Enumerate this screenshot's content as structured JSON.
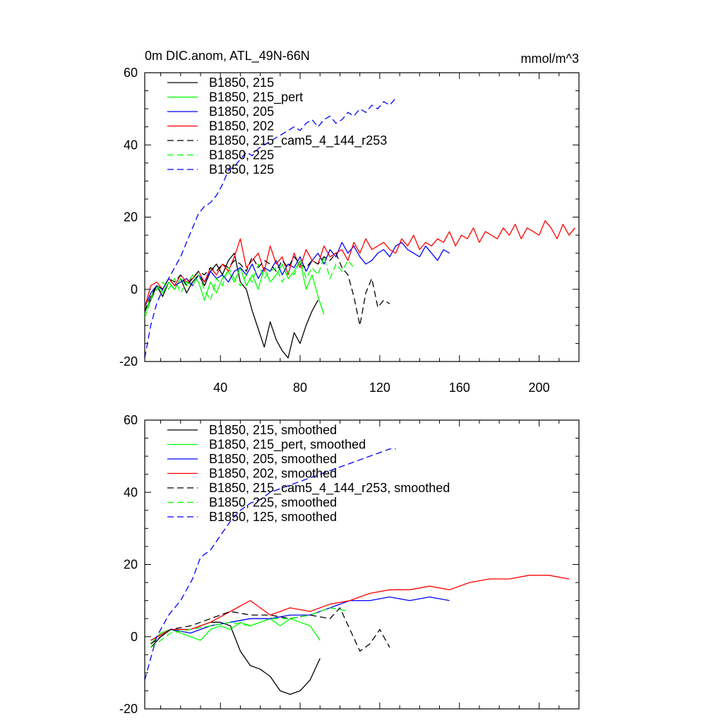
{
  "chart_data": [
    {
      "type": "line",
      "title": "0m DIC.anom, ATL_49N-66N",
      "units": "mmol/m^3",
      "xlabel": "",
      "ylabel": "",
      "xlim": [
        2,
        220
      ],
      "ylim": [
        -20,
        60
      ],
      "yticks": [
        -20,
        0,
        20,
        40,
        60
      ],
      "xticks": [
        40,
        80,
        120,
        160,
        200
      ],
      "show_xtick_labels": true,
      "legend_position": "top-left",
      "series": [
        {
          "name": "B1850, 215",
          "color": "#000000",
          "dash": "solid",
          "x": [
            2,
            5,
            8,
            11,
            14,
            17,
            20,
            23,
            26,
            29,
            32,
            35,
            38,
            41,
            44,
            47,
            50,
            53,
            56,
            59,
            62,
            65,
            68,
            71,
            74,
            77,
            80,
            83,
            86,
            89
          ],
          "y": [
            -6,
            -3,
            1,
            -2,
            2,
            0,
            3,
            -1,
            2,
            4,
            1,
            5,
            7,
            4,
            8,
            10,
            2,
            0,
            -6,
            -11,
            -16,
            -9,
            -14,
            -17,
            -19,
            -12,
            -15,
            -10,
            -6,
            -3
          ]
        },
        {
          "name": "B1850, 215_pert",
          "color": "#00ff00",
          "dash": "solid",
          "x": [
            2,
            5,
            8,
            11,
            14,
            17,
            20,
            23,
            26,
            29,
            32,
            35,
            38,
            41,
            44,
            47,
            50,
            53,
            56,
            59,
            62,
            65,
            68,
            71,
            74,
            77,
            80,
            83,
            86,
            89,
            92
          ],
          "y": [
            -7,
            -2,
            1,
            -1,
            2,
            0,
            3,
            1,
            4,
            2,
            -3,
            2,
            -1,
            3,
            5,
            2,
            6,
            1,
            4,
            0,
            6,
            2,
            4,
            7,
            3,
            5,
            8,
            0,
            4,
            -2,
            -7
          ]
        },
        {
          "name": "B1850, 205",
          "color": "#0000ff",
          "dash": "solid",
          "x": [
            2,
            5,
            8,
            11,
            14,
            17,
            20,
            23,
            26,
            29,
            32,
            35,
            38,
            41,
            44,
            47,
            50,
            53,
            56,
            59,
            62,
            65,
            68,
            71,
            74,
            77,
            80,
            83,
            86,
            89,
            92,
            95,
            98,
            101,
            104,
            107,
            110,
            113,
            116,
            119,
            122,
            125,
            128,
            131,
            134,
            137,
            140,
            143,
            146,
            149,
            152,
            155
          ],
          "y": [
            -5,
            -1,
            1,
            0,
            3,
            1,
            2,
            3,
            1,
            4,
            2,
            5,
            3,
            4,
            2,
            5,
            6,
            4,
            7,
            3,
            6,
            5,
            8,
            4,
            7,
            6,
            9,
            5,
            8,
            10,
            7,
            11,
            9,
            13,
            10,
            12,
            9,
            7,
            8,
            10,
            11,
            9,
            12,
            13,
            11,
            10,
            9,
            12,
            10,
            8,
            11,
            10
          ]
        },
        {
          "name": "B1850, 202",
          "color": "#ff0000",
          "dash": "solid",
          "x": [
            2,
            5,
            8,
            11,
            14,
            17,
            20,
            23,
            26,
            29,
            32,
            35,
            38,
            41,
            44,
            47,
            50,
            53,
            56,
            59,
            62,
            65,
            68,
            71,
            74,
            77,
            80,
            83,
            86,
            89,
            92,
            95,
            98,
            101,
            104,
            107,
            110,
            113,
            116,
            119,
            122,
            125,
            128,
            131,
            134,
            137,
            140,
            143,
            146,
            149,
            152,
            155,
            158,
            161,
            164,
            167,
            170,
            173,
            176,
            179,
            182,
            185,
            188,
            191,
            194,
            197,
            200,
            203,
            206,
            209,
            212,
            215,
            218
          ],
          "y": [
            -5,
            1,
            2,
            0,
            3,
            1,
            4,
            2,
            3,
            5,
            2,
            6,
            4,
            7,
            5,
            9,
            14,
            6,
            8,
            10,
            5,
            12,
            7,
            9,
            4,
            10,
            6,
            11,
            8,
            7,
            12,
            9,
            10,
            11,
            8,
            13,
            10,
            14,
            11,
            12,
            13,
            11,
            10,
            14,
            12,
            15,
            11,
            13,
            12,
            14,
            13,
            16,
            12,
            15,
            14,
            17,
            13,
            16,
            15,
            14,
            17,
            15,
            18,
            14,
            17,
            16,
            15,
            19,
            17,
            14,
            18,
            15,
            17
          ]
        },
        {
          "name": "B1850, 215_cam5_4_144_r253",
          "color": "#000000",
          "dash": "dashed",
          "x": [
            2,
            5,
            8,
            11,
            14,
            17,
            20,
            23,
            26,
            29,
            32,
            35,
            38,
            41,
            44,
            47,
            50,
            53,
            56,
            59,
            62,
            65,
            68,
            71,
            74,
            77,
            80,
            83,
            86,
            89,
            92,
            95,
            98,
            101,
            104,
            107,
            110,
            113,
            116,
            119,
            122,
            125
          ],
          "y": [
            -6,
            -2,
            1,
            0,
            3,
            2,
            4,
            1,
            3,
            5,
            4,
            6,
            5,
            7,
            6,
            8,
            7,
            5,
            9,
            6,
            8,
            7,
            5,
            8,
            6,
            9,
            7,
            6,
            8,
            7,
            9,
            8,
            10,
            6,
            4,
            -2,
            -10,
            -1,
            3,
            -5,
            -3,
            -4
          ]
        },
        {
          "name": "B1850, 225",
          "color": "#00ff00",
          "dash": "dashed",
          "x": [
            2,
            5,
            8,
            11,
            14,
            17,
            20,
            23,
            26,
            29,
            32,
            35,
            38,
            41,
            44,
            47,
            50,
            53,
            56,
            59,
            62,
            65,
            68,
            71,
            74,
            77,
            80,
            83,
            86,
            89,
            92,
            95,
            98,
            101,
            104,
            107
          ],
          "y": [
            -8,
            -3,
            0,
            2,
            0,
            3,
            -1,
            2,
            1,
            4,
            0,
            -3,
            3,
            1,
            6,
            3,
            1,
            4,
            2,
            7,
            3,
            5,
            6,
            2,
            5,
            4,
            8,
            3,
            6,
            4,
            9,
            3,
            7,
            5,
            8,
            6
          ]
        },
        {
          "name": "B1850, 125",
          "color": "#0000ff",
          "dash": "dashed",
          "x": [
            2,
            5,
            8,
            11,
            14,
            17,
            20,
            23,
            26,
            29,
            32,
            35,
            38,
            41,
            44,
            47,
            50,
            53,
            56,
            59,
            62,
            65,
            68,
            71,
            74,
            77,
            80,
            83,
            86,
            89,
            92,
            95,
            98,
            101,
            104,
            107,
            110,
            113,
            116,
            119,
            122,
            125,
            128
          ],
          "y": [
            -19,
            -10,
            -4,
            0,
            3,
            6,
            9,
            13,
            17,
            21,
            23,
            24,
            26,
            29,
            33,
            34,
            36,
            38,
            37,
            39,
            40,
            41,
            42,
            43,
            44,
            45,
            44,
            46,
            47,
            45,
            47,
            48,
            46,
            47,
            49,
            48,
            50,
            49,
            51,
            50,
            52,
            51,
            53
          ]
        }
      ]
    },
    {
      "type": "line",
      "title": "",
      "xlabel": "",
      "ylabel": "",
      "xlim": [
        2,
        220
      ],
      "ylim": [
        -20,
        60
      ],
      "yticks": [
        -20,
        0,
        20,
        40,
        60
      ],
      "xticks": [
        40,
        80,
        120,
        160,
        200
      ],
      "show_xtick_labels": false,
      "legend_position": "top-left",
      "series": [
        {
          "name": "B1850, 215, smoothed",
          "color": "#000000",
          "dash": "solid",
          "x": [
            5,
            10,
            15,
            20,
            25,
            30,
            35,
            40,
            45,
            50,
            55,
            60,
            65,
            70,
            75,
            80,
            85,
            90
          ],
          "y": [
            -3,
            0,
            2,
            2,
            2,
            3,
            4,
            4,
            3,
            -4,
            -8,
            -9,
            -11,
            -15,
            -16,
            -15,
            -12,
            -6
          ]
        },
        {
          "name": "B1850, 215_pert, smoothed",
          "color": "#00ff00",
          "dash": "solid",
          "x": [
            5,
            10,
            15,
            20,
            25,
            30,
            35,
            40,
            45,
            50,
            55,
            60,
            65,
            70,
            75,
            80,
            85,
            90
          ],
          "y": [
            -2,
            1,
            2,
            1,
            0,
            -1,
            2,
            3,
            2,
            4,
            3,
            4,
            5,
            3,
            5,
            4,
            3,
            -1
          ]
        },
        {
          "name": "B1850, 205, smoothed",
          "color": "#0000ff",
          "dash": "solid",
          "x": [
            5,
            15,
            25,
            35,
            45,
            55,
            65,
            75,
            85,
            95,
            105,
            115,
            125,
            135,
            145,
            155
          ],
          "y": [
            -1,
            2,
            1,
            3,
            4,
            5,
            5,
            6,
            6,
            8,
            10,
            10,
            11,
            10,
            11,
            10
          ]
        },
        {
          "name": "B1850, 202, smoothed",
          "color": "#ff0000",
          "dash": "solid",
          "x": [
            5,
            15,
            25,
            35,
            45,
            55,
            65,
            75,
            85,
            95,
            105,
            115,
            125,
            135,
            145,
            155,
            165,
            175,
            185,
            195,
            205,
            215
          ],
          "y": [
            -1,
            2,
            2,
            4,
            7,
            10,
            6,
            8,
            7,
            9,
            10,
            12,
            13,
            13,
            14,
            13,
            15,
            16,
            16,
            17,
            17,
            16
          ]
        },
        {
          "name": "B1850, 215_cam5_4_144_r253, smoothed",
          "color": "#000000",
          "dash": "dashed",
          "x": [
            5,
            15,
            25,
            35,
            45,
            55,
            65,
            75,
            85,
            95,
            100,
            105,
            110,
            115,
            120,
            125
          ],
          "y": [
            -2,
            2,
            3,
            5,
            7,
            6,
            6,
            5,
            6,
            5,
            8,
            2,
            -4,
            -2,
            2,
            -3
          ]
        },
        {
          "name": "B1850, 225, smoothed",
          "color": "#00ff00",
          "dash": "dashed",
          "x": [
            5,
            15,
            25,
            35,
            45,
            55,
            65,
            75,
            85,
            95,
            105
          ],
          "y": [
            -3,
            1,
            2,
            3,
            4,
            3,
            5,
            5,
            6,
            8,
            7
          ]
        },
        {
          "name": "B1850, 125, smoothed",
          "color": "#0000ff",
          "dash": "dashed",
          "x": [
            2,
            8,
            14,
            20,
            26,
            30,
            35,
            40,
            45,
            50,
            55,
            60,
            65,
            70,
            75,
            80,
            85,
            90,
            95,
            100,
            105,
            110,
            115,
            120,
            125,
            128
          ],
          "y": [
            -12,
            0,
            6,
            10,
            16,
            22,
            24,
            28,
            32,
            35,
            37,
            38,
            40,
            41,
            42,
            43,
            44,
            45,
            46,
            47,
            48,
            49,
            50,
            51,
            52,
            52
          ]
        }
      ]
    }
  ]
}
